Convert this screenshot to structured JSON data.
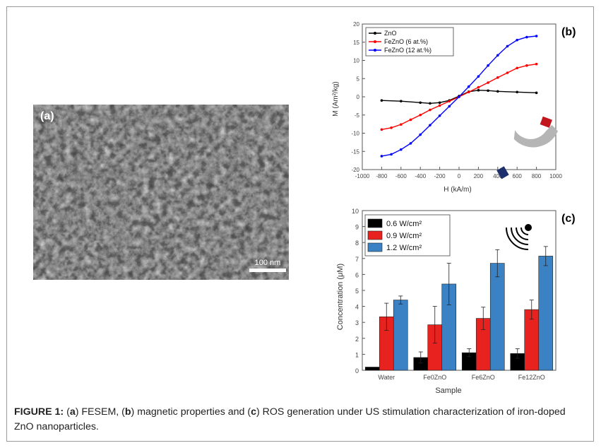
{
  "panel_a": {
    "label": "(a)",
    "scale_bar": "100 nm"
  },
  "panel_b_label": "(b)",
  "panel_c_label": "(c)",
  "chart_data": [
    {
      "type": "line",
      "xlabel": "H (kA/m)",
      "ylabel": "M (Am²/kg)",
      "xlim": [
        -1000,
        1000
      ],
      "ylim": [
        -20,
        20
      ],
      "xticks": [
        -1000,
        -800,
        -600,
        -400,
        -200,
        0,
        200,
        400,
        600,
        800,
        1000
      ],
      "yticks": [
        -20,
        -15,
        -10,
        -5,
        0,
        5,
        10,
        15,
        20
      ],
      "legend_position": "top-left",
      "series": [
        {
          "name": "ZnO",
          "color": "#000000",
          "x": [
            -800,
            -600,
            -400,
            -300,
            -200,
            -100,
            0,
            100,
            200,
            300,
            400,
            600,
            800
          ],
          "y": [
            -1.0,
            -1.2,
            -1.6,
            -1.8,
            -1.6,
            -1.0,
            0.2,
            1.4,
            1.8,
            1.7,
            1.5,
            1.3,
            1.1
          ]
        },
        {
          "name": "FeZnO (6 at.%)",
          "color": "#ff0000",
          "x": [
            -800,
            -700,
            -600,
            -500,
            -400,
            -300,
            -200,
            -100,
            0,
            100,
            200,
            300,
            400,
            500,
            600,
            700,
            800
          ],
          "y": [
            -9.0,
            -8.5,
            -7.6,
            -6.3,
            -5.0,
            -3.6,
            -2.4,
            -1.2,
            0.0,
            1.3,
            2.6,
            3.9,
            5.3,
            6.6,
            7.9,
            8.6,
            9.0
          ]
        },
        {
          "name": "FeZnO (12 at.%)",
          "color": "#0000ff",
          "x": [
            -800,
            -700,
            -600,
            -500,
            -400,
            -300,
            -200,
            -100,
            0,
            100,
            200,
            300,
            400,
            500,
            600,
            700,
            800
          ],
          "y": [
            -16.3,
            -15.8,
            -14.5,
            -12.8,
            -10.4,
            -7.8,
            -5.2,
            -2.6,
            0.0,
            2.8,
            5.6,
            8.6,
            11.4,
            13.9,
            15.6,
            16.4,
            16.7
          ]
        }
      ]
    },
    {
      "type": "bar",
      "xlabel": "Sample",
      "ylabel": "Concentration (μM)",
      "ylim": [
        0,
        10
      ],
      "yticks": [
        0,
        1,
        2,
        3,
        4,
        5,
        6,
        7,
        8,
        9,
        10
      ],
      "categories": [
        "Water",
        "Fe0ZnO",
        "Fe6ZnO",
        "Fe12ZnO"
      ],
      "legend_position": "top-left",
      "series": [
        {
          "name": "0.6 W/cm²",
          "color": "#000000",
          "values": [
            0.2,
            0.8,
            1.1,
            1.05
          ],
          "errors": [
            0.0,
            0.35,
            0.25,
            0.3
          ]
        },
        {
          "name": "0.9 W/cm²",
          "color": "#e8221f",
          "values": [
            3.35,
            2.85,
            3.25,
            3.8
          ],
          "errors": [
            0.85,
            1.15,
            0.7,
            0.6
          ]
        },
        {
          "name": "1.2 W/cm²",
          "color": "#3a82c4",
          "values": [
            4.4,
            5.4,
            6.7,
            7.15
          ],
          "errors": [
            0.25,
            1.3,
            0.85,
            0.6
          ]
        }
      ]
    }
  ],
  "caption": {
    "fig": "FIGURE 1:",
    "p1": " (",
    "a": "a",
    "p2": ") FESEM, (",
    "b": "b",
    "p3": ") magnetic properties and (",
    "c": "c",
    "p4": ") ROS generation under US stimulation characterization of iron-doped ZnO nanoparticles."
  }
}
